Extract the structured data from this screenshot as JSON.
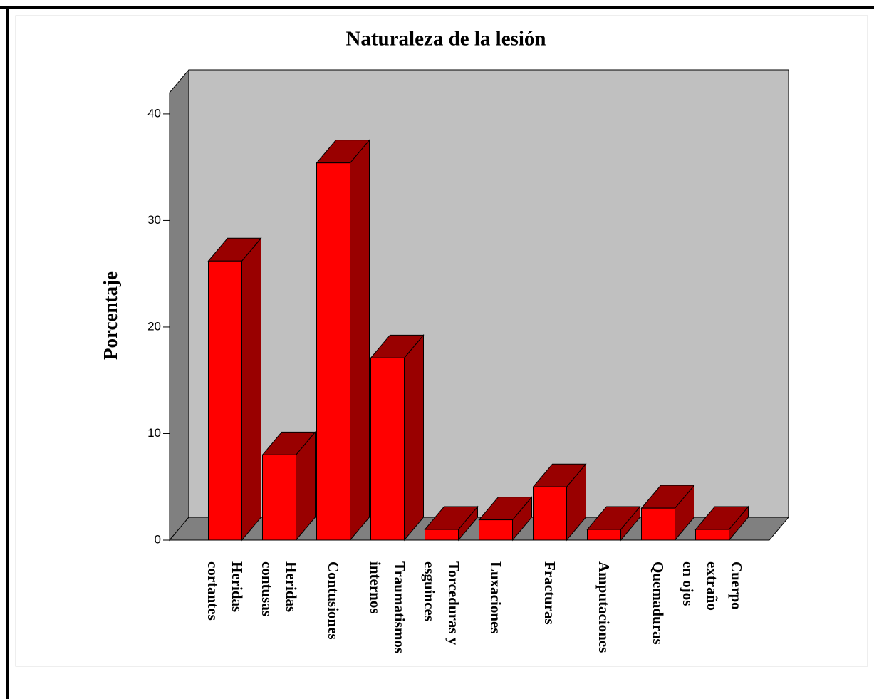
{
  "chart_data": {
    "type": "bar3d",
    "title": "Naturaleza de la lesión",
    "ylabel": "Porcentaje",
    "categories": [
      "Heridas\ncortantes",
      "Heridas\ncontusas",
      "Contusiones",
      "Traumatismos\ninternos",
      "Torceduras y\nesguinces",
      "Luxaciones",
      "Fracturas",
      "Amputaciones",
      "Quemaduras",
      "Cuerpo\nextraño\nen ojos"
    ],
    "values": [
      26.2,
      8,
      35.4,
      17.1,
      1,
      1.9,
      5,
      1,
      3,
      1
    ],
    "color": "#ff0000",
    "shade_color": "#990000",
    "ylim": [
      0,
      42
    ],
    "yticks": [
      0,
      10,
      20,
      30,
      40
    ],
    "grid": false
  }
}
